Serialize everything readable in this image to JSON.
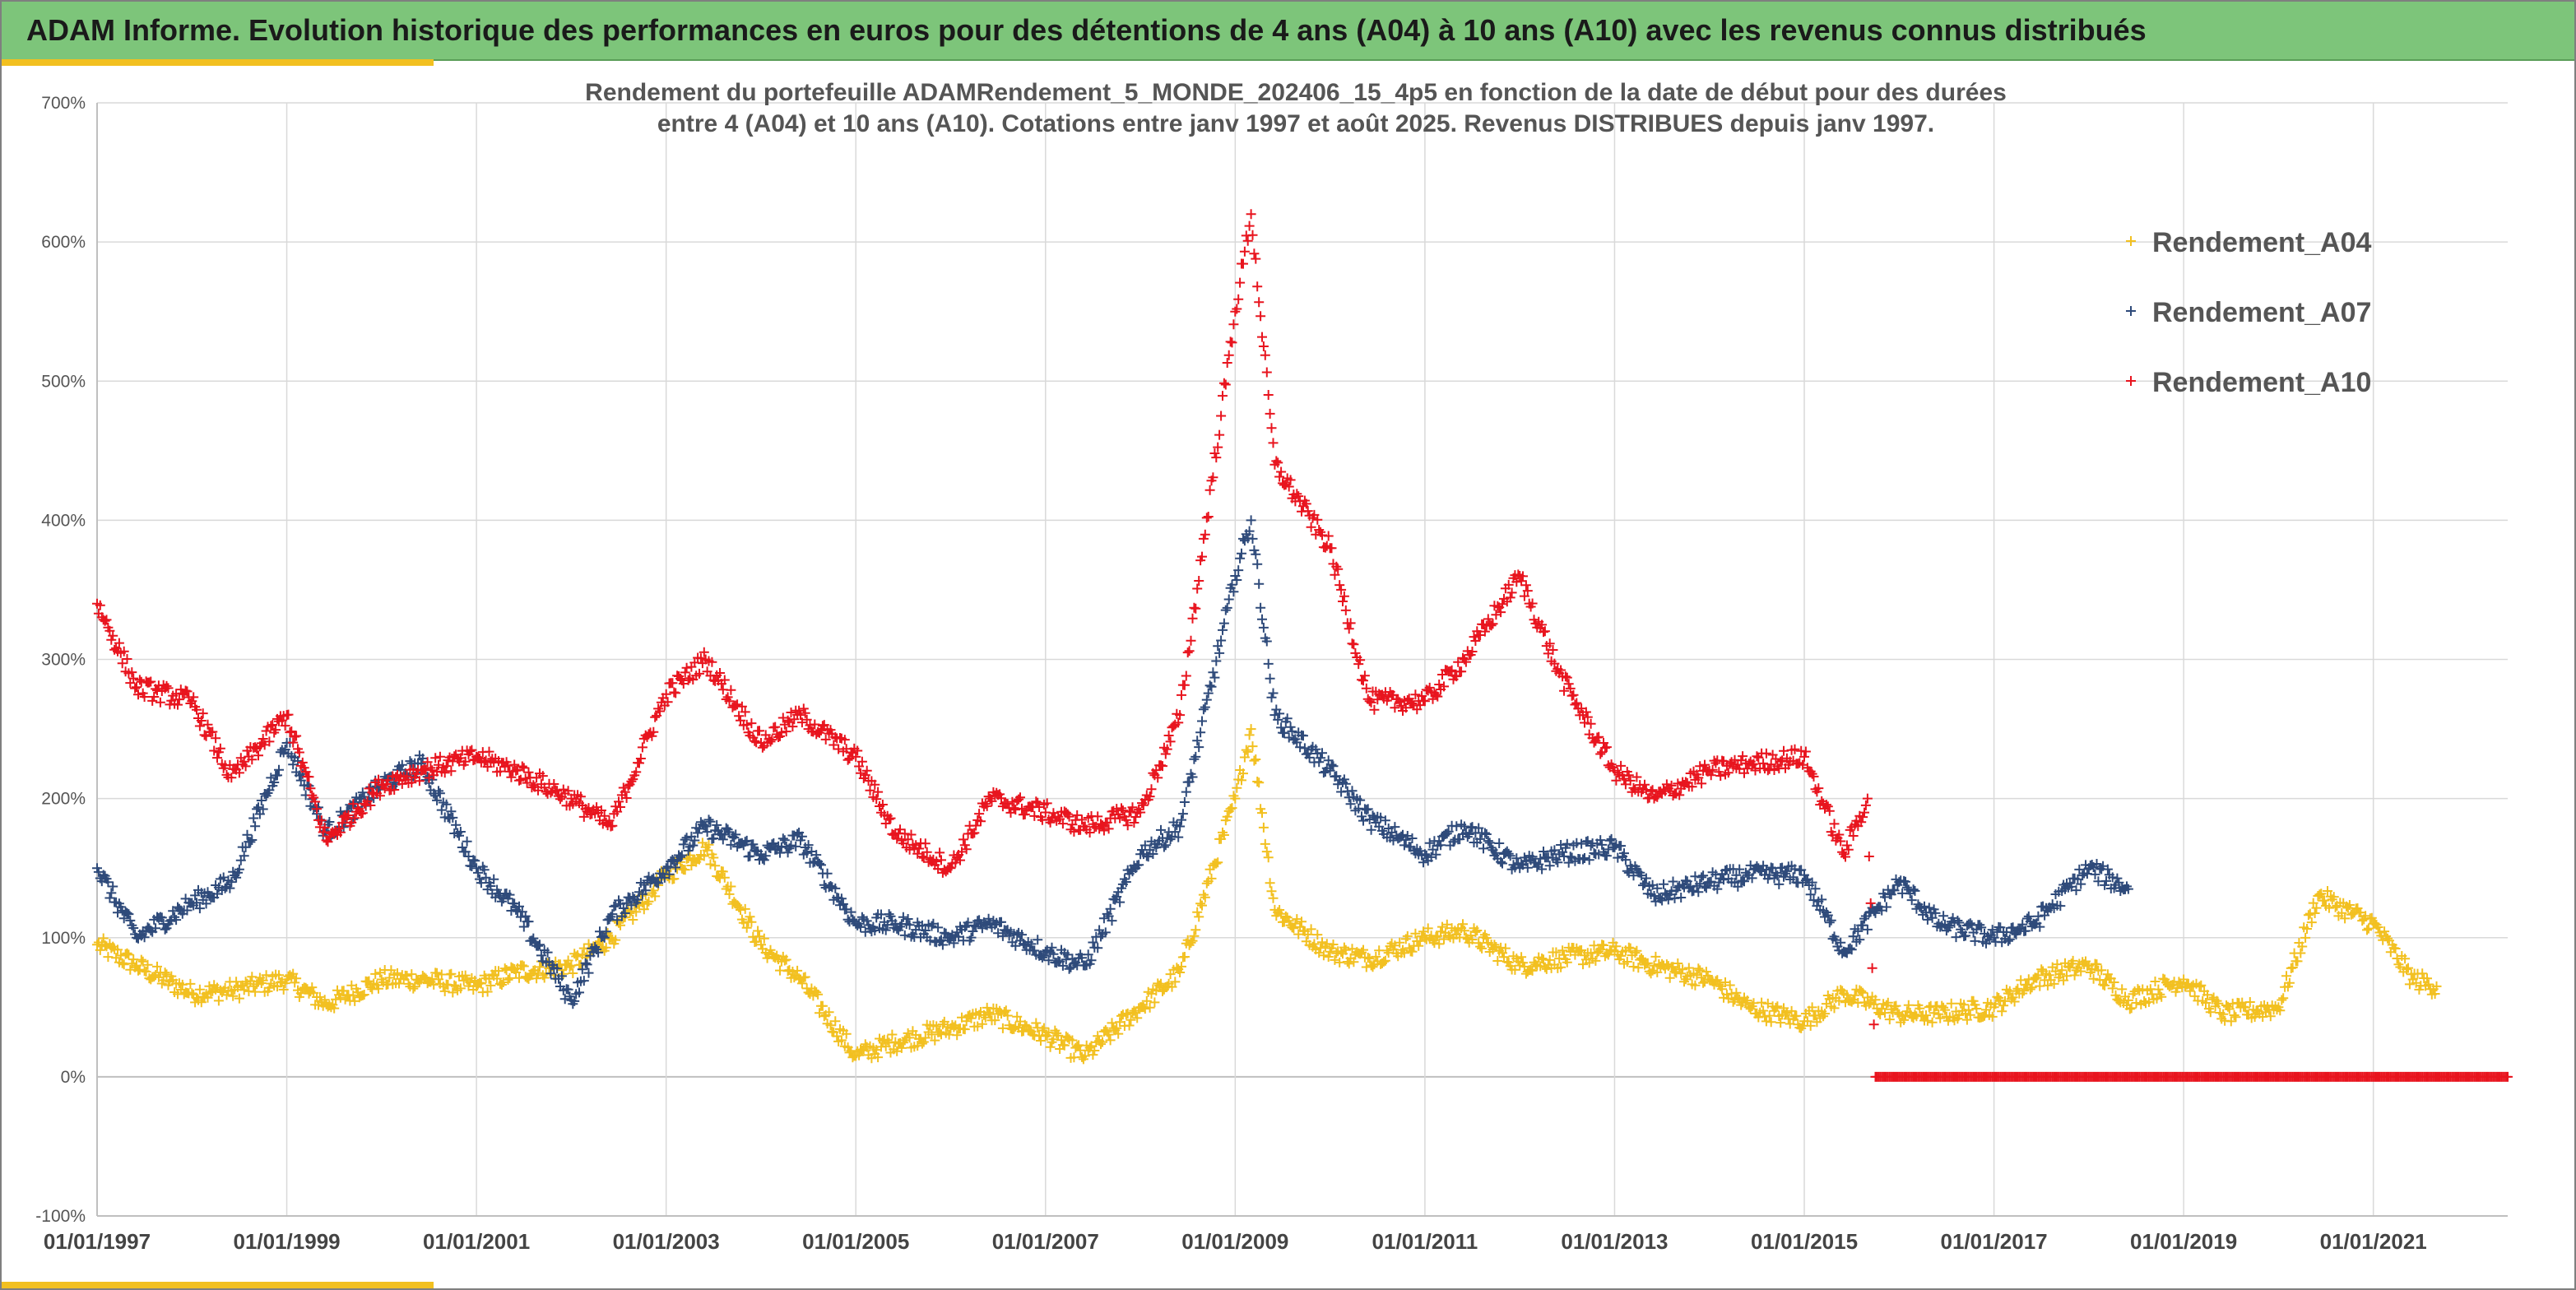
{
  "header": {
    "title": "ADAM Informe. Evolution historique des performances en euros pour des détentions de 4 ans (A04) à 10 ans (A10) avec les revenus connus distribués"
  },
  "colors": {
    "A04": "#f2c020",
    "A07": "#2e4a7a",
    "A10": "#e8141e",
    "grid": "#d9d9d9",
    "axis": "#bfbfbf",
    "banner": "#7dc57a",
    "accent": "#f2c020"
  },
  "chart_data": {
    "type": "scatter",
    "title": "Rendement du portefeuille ADAMRendement_5_MONDE_202406_15_4p5  en fonction de la date de début pour des durées entre 4 (A04) et 10 ans (A10). Cotations entre janv 1997 et août 2025. Revenus DISTRIBUES depuis janv 1997.",
    "subtitle_lines": [
      "Rendement du portefeuille ADAMRendement_5_MONDE_202406_15_4p5  en fonction de la date de début pour des durées",
      "entre 4 (A04) et 10 ans (A10). Cotations entre janv 1997 et août 2025. Revenus DISTRIBUES depuis janv 1997."
    ],
    "xlabel": "",
    "ylabel": "",
    "xlim": [
      "01/01/1997",
      "01/06/2022"
    ],
    "ylim": [
      -100,
      700
    ],
    "x_ticks": [
      "01/01/1997",
      "01/01/1999",
      "01/01/2001",
      "01/01/2003",
      "01/01/2005",
      "01/01/2007",
      "01/01/2009",
      "01/01/2011",
      "01/01/2013",
      "01/01/2015",
      "01/01/2017",
      "01/01/2019",
      "01/01/2021"
    ],
    "y_ticks": [
      "-100%",
      "0%",
      "100%",
      "200%",
      "300%",
      "400%",
      "500%",
      "600%",
      "700%"
    ],
    "grid": true,
    "legend_position": "top-right",
    "marker": "+",
    "series": [
      {
        "name": "Rendement_A04",
        "key": "A04",
        "x": [
          "1997-01",
          "1997-06",
          "1998-01",
          "1998-06",
          "1999-01",
          "1999-06",
          "2000-01",
          "2000-06",
          "2001-01",
          "2001-06",
          "2002-01",
          "2002-06",
          "2003-01",
          "2003-06",
          "2004-01",
          "2004-06",
          "2005-01",
          "2005-06",
          "2006-01",
          "2006-06",
          "2007-01",
          "2007-06",
          "2008-01",
          "2008-06",
          "2009-01",
          "2009-03",
          "2009-06",
          "2010-01",
          "2010-06",
          "2011-01",
          "2011-06",
          "2012-01",
          "2012-06",
          "2013-01",
          "2013-06",
          "2014-01",
          "2014-06",
          "2015-01",
          "2015-06",
          "2016-01",
          "2016-06",
          "2017-01",
          "2017-06",
          "2018-01",
          "2018-06",
          "2019-01",
          "2019-06",
          "2020-01",
          "2020-06",
          "2021-01",
          "2021-06",
          "2021-09"
        ],
        "y": [
          95,
          80,
          60,
          62,
          70,
          52,
          70,
          70,
          65,
          75,
          80,
          100,
          145,
          165,
          95,
          70,
          15,
          25,
          35,
          45,
          30,
          15,
          50,
          75,
          200,
          250,
          120,
          90,
          85,
          100,
          105,
          80,
          85,
          90,
          80,
          70,
          50,
          40,
          60,
          45,
          45,
          50,
          70,
          80,
          55,
          70,
          45,
          50,
          130,
          110,
          70,
          65
        ]
      },
      {
        "name": "Rendement_A07",
        "key": "A07",
        "x": [
          "1997-01",
          "1997-06",
          "1998-01",
          "1998-06",
          "1999-01",
          "1999-06",
          "2000-01",
          "2000-06",
          "2001-01",
          "2001-06",
          "2002-01",
          "2002-06",
          "2003-01",
          "2003-06",
          "2004-01",
          "2004-06",
          "2005-01",
          "2005-06",
          "2006-01",
          "2006-06",
          "2007-01",
          "2007-06",
          "2008-01",
          "2008-06",
          "2009-01",
          "2009-03",
          "2009-06",
          "2010-01",
          "2010-06",
          "2011-01",
          "2011-06",
          "2012-01",
          "2012-06",
          "2013-01",
          "2013-06",
          "2014-01",
          "2014-06",
          "2015-01",
          "2015-06",
          "2016-01",
          "2016-06",
          "2017-01",
          "2017-06",
          "2018-01",
          "2018-06"
        ],
        "y": [
          150,
          100,
          125,
          140,
          240,
          175,
          210,
          225,
          150,
          120,
          55,
          115,
          150,
          180,
          160,
          170,
          110,
          110,
          100,
          110,
          90,
          80,
          160,
          180,
          360,
          400,
          260,
          220,
          185,
          160,
          180,
          150,
          160,
          165,
          130,
          140,
          145,
          145,
          90,
          140,
          110,
          100,
          110,
          150,
          135
        ]
      },
      {
        "name": "Rendement_A10",
        "key": "A10",
        "x": [
          "1997-01",
          "1997-06",
          "1998-01",
          "1998-06",
          "1999-01",
          "1999-06",
          "2000-01",
          "2000-06",
          "2001-01",
          "2001-06",
          "2002-01",
          "2002-06",
          "2003-01",
          "2003-06",
          "2004-01",
          "2004-06",
          "2005-01",
          "2005-06",
          "2006-01",
          "2006-06",
          "2007-01",
          "2007-06",
          "2008-01",
          "2008-06",
          "2009-01",
          "2009-03",
          "2009-06",
          "2010-01",
          "2010-06",
          "2011-01",
          "2011-06",
          "2012-01",
          "2012-06",
          "2013-01",
          "2013-06",
          "2014-01",
          "2014-06",
          "2015-01",
          "2015-06",
          "2015-09",
          "2015-10",
          "2016-01",
          "2016-06",
          "2017-01",
          "2017-06",
          "2018-01",
          "2018-06",
          "2019-01",
          "2019-06",
          "2020-01",
          "2020-06",
          "2021-01",
          "2021-06",
          "2022-01",
          "2022-06"
        ],
        "y": [
          340,
          280,
          270,
          215,
          260,
          170,
          210,
          220,
          230,
          220,
          200,
          180,
          275,
          300,
          240,
          260,
          230,
          175,
          150,
          200,
          190,
          180,
          190,
          260,
          550,
          620,
          440,
          380,
          270,
          270,
          300,
          360,
          290,
          220,
          200,
          220,
          225,
          230,
          160,
          200,
          0,
          0,
          0,
          0,
          0,
          0,
          0,
          0,
          0,
          0,
          0,
          0,
          0,
          0,
          0
        ]
      }
    ]
  }
}
